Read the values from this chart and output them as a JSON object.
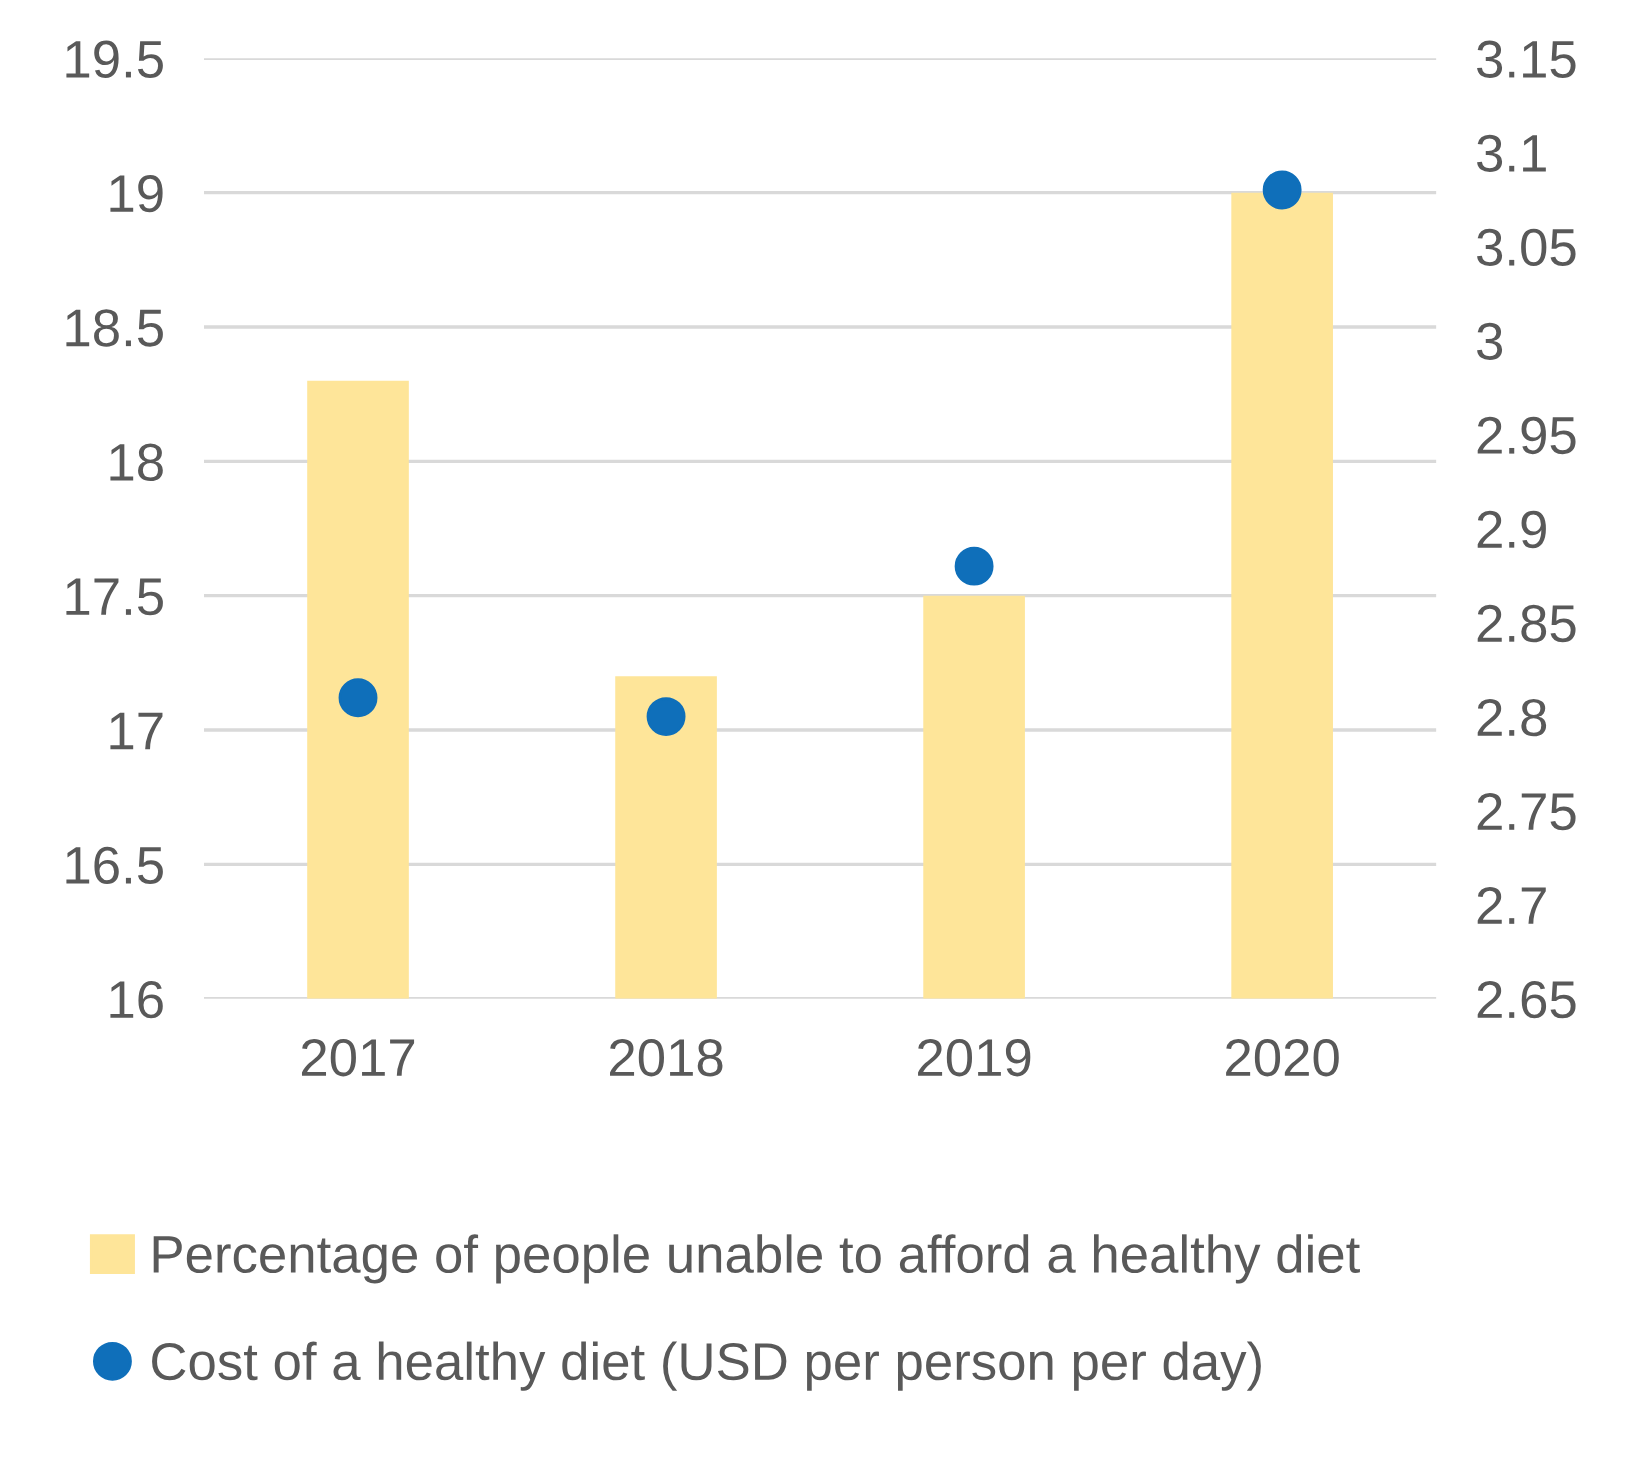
{
  "chart_data": {
    "type": "bar",
    "categories": [
      "2017",
      "2018",
      "2019",
      "2020"
    ],
    "series": [
      {
        "name": "Percentage of people unable to afford a healthy diet",
        "color": "#fee599",
        "values": [
          18.3,
          17.2,
          17.5,
          19.0
        ]
      },
      {
        "name": "Cost of a healthy diet (USD per person per day)",
        "type": "scatter",
        "axis": "y2",
        "color": "#0f6fba",
        "values": [
          2.81,
          2.8,
          2.88,
          3.08
        ]
      }
    ],
    "ylim": [
      16,
      19.5
    ],
    "yticks": [
      16,
      16.5,
      17,
      17.5,
      18,
      18.5,
      19,
      19.5
    ],
    "y2lim": [
      2.65,
      3.15
    ],
    "y2ticks": [
      2.65,
      2.7,
      2.75,
      2.8,
      2.85,
      2.9,
      2.95,
      {
        "value": 3.0,
        "label": "3"
      },
      3.05,
      {
        "value": 3.1,
        "label": "3.1"
      },
      3.15
    ],
    "grid": "y",
    "legend": "bottom",
    "marker": "circle"
  }
}
